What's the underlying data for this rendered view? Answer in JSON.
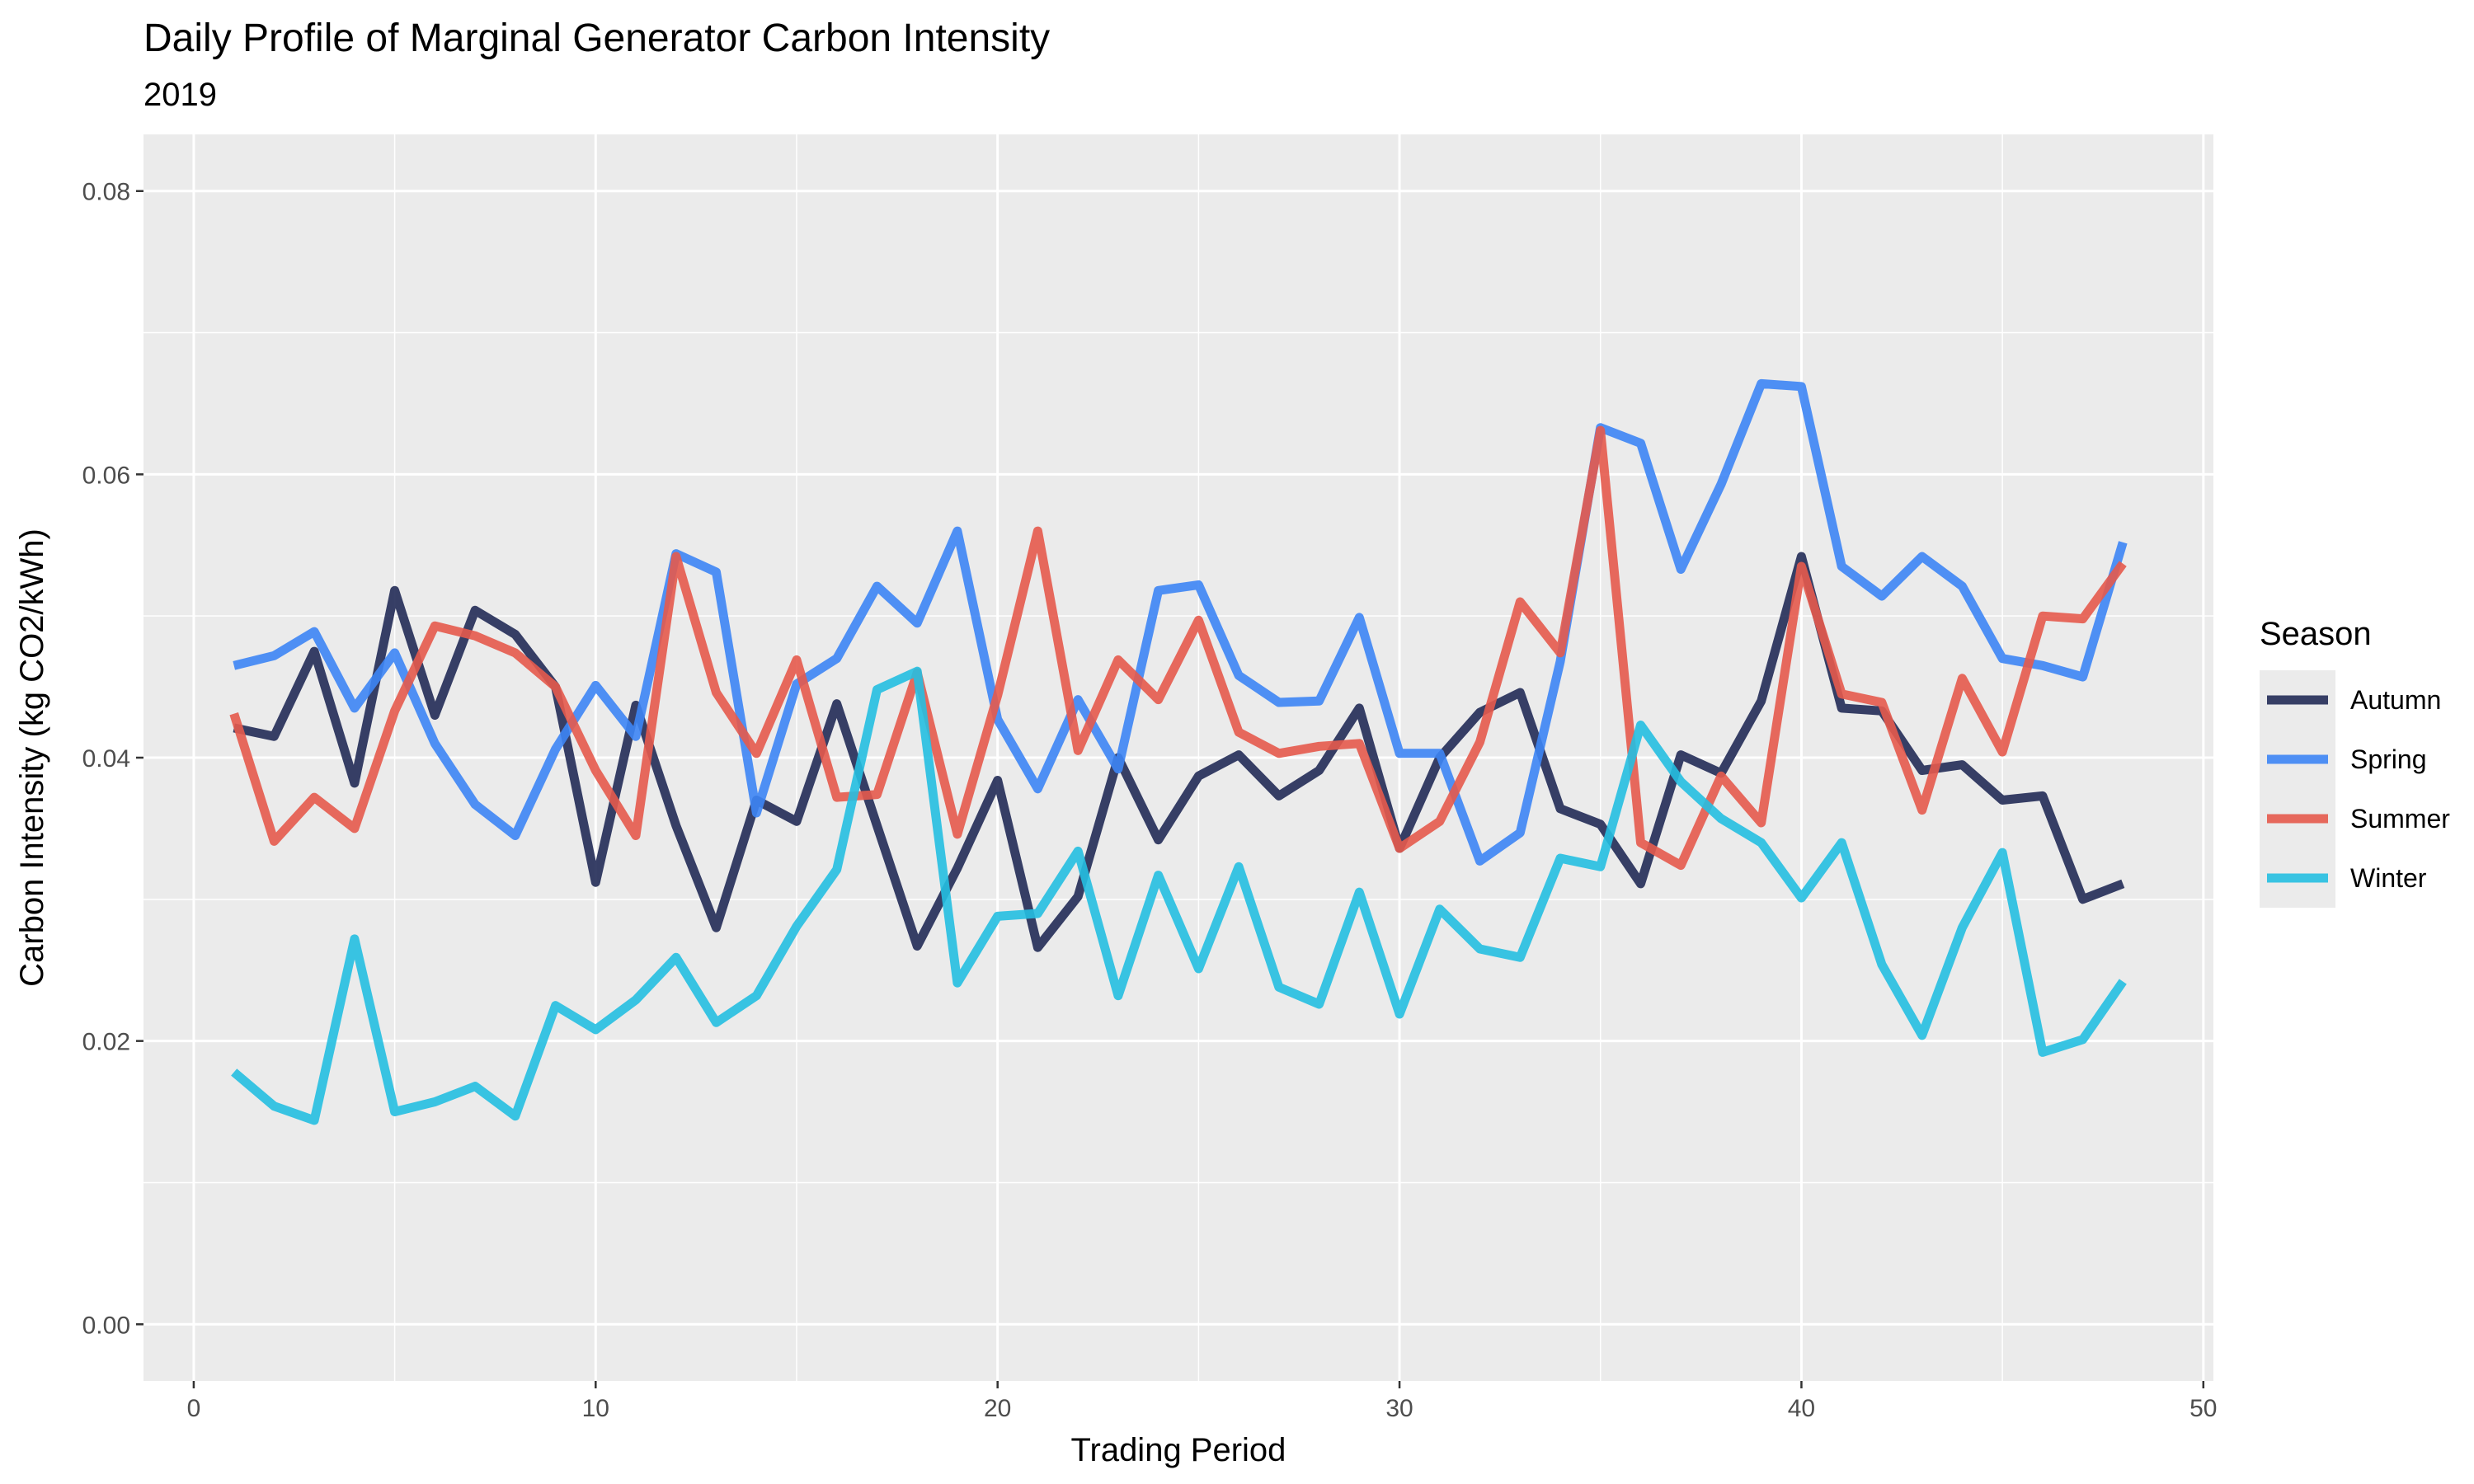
{
  "chart_data": {
    "type": "line",
    "title": "Daily Profile of Marginal Generator Carbon Intensity",
    "subtitle": "2019",
    "xlabel": "Trading Period",
    "ylabel": "Carbon Intensity (kg CO2/kWh)",
    "xlim": [
      -1.25,
      50.25
    ],
    "ylim": [
      -0.004,
      0.084
    ],
    "x_ticks": [
      0,
      10,
      20,
      30,
      40,
      50
    ],
    "y_ticks": [
      0.0,
      0.02,
      0.04,
      0.06,
      0.08
    ],
    "x_tick_labels": [
      "0",
      "10",
      "20",
      "30",
      "40",
      "50"
    ],
    "y_tick_labels": [
      "0.00",
      "0.02",
      "0.04",
      "0.06",
      "0.08"
    ],
    "grid": true,
    "legend": {
      "title": "Season",
      "position": "right"
    },
    "x": [
      1,
      2,
      3,
      4,
      5,
      6,
      7,
      8,
      9,
      10,
      11,
      12,
      13,
      14,
      15,
      16,
      17,
      18,
      19,
      20,
      21,
      22,
      23,
      24,
      25,
      26,
      27,
      28,
      29,
      30,
      31,
      32,
      33,
      34,
      35,
      36,
      37,
      38,
      39,
      40,
      41,
      42,
      43,
      44,
      45,
      46,
      47,
      48
    ],
    "series": [
      {
        "name": "Autumn",
        "color": "#222b56",
        "values": [
          0.0421,
          0.0415,
          0.0475,
          0.0382,
          0.0518,
          0.043,
          0.0504,
          0.0487,
          0.045,
          0.0312,
          0.0437,
          0.0352,
          0.028,
          0.037,
          0.0355,
          0.0438,
          0.0352,
          0.0267,
          0.0322,
          0.0384,
          0.0266,
          0.0302,
          0.04,
          0.0342,
          0.0387,
          0.0402,
          0.0373,
          0.0391,
          0.0435,
          0.0336,
          0.04,
          0.0432,
          0.0446,
          0.0364,
          0.0353,
          0.0311,
          0.0402,
          0.0389,
          0.044,
          0.0542,
          0.0435,
          0.0433,
          0.0391,
          0.0395,
          0.037,
          0.0373,
          0.03,
          0.0311
        ]
      },
      {
        "name": "Spring",
        "color": "#3d85f5",
        "values": [
          0.0465,
          0.0472,
          0.0489,
          0.0435,
          0.0474,
          0.041,
          0.0367,
          0.0345,
          0.0406,
          0.0451,
          0.0415,
          0.0544,
          0.0531,
          0.0361,
          0.0452,
          0.047,
          0.0521,
          0.0495,
          0.056,
          0.0427,
          0.0378,
          0.0441,
          0.0392,
          0.0518,
          0.0522,
          0.0458,
          0.0439,
          0.044,
          0.0499,
          0.0403,
          0.0403,
          0.0327,
          0.0347,
          0.0468,
          0.0633,
          0.0622,
          0.0533,
          0.0593,
          0.0664,
          0.0662,
          0.0535,
          0.0514,
          0.0542,
          0.0521,
          0.047,
          0.0465,
          0.0457,
          0.0552
        ]
      },
      {
        "name": "Summer",
        "color": "#e55a4c",
        "values": [
          0.0431,
          0.0341,
          0.0372,
          0.035,
          0.0433,
          0.0493,
          0.0486,
          0.0474,
          0.045,
          0.0391,
          0.0345,
          0.0542,
          0.0446,
          0.0403,
          0.0469,
          0.0372,
          0.0374,
          0.046,
          0.0346,
          0.0444,
          0.056,
          0.0405,
          0.0469,
          0.0441,
          0.0497,
          0.0418,
          0.0403,
          0.0408,
          0.041,
          0.0336,
          0.0355,
          0.0411,
          0.051,
          0.0474,
          0.0631,
          0.034,
          0.0324,
          0.0387,
          0.0354,
          0.0535,
          0.0445,
          0.0439,
          0.0363,
          0.0456,
          0.0404,
          0.05,
          0.0498,
          0.0537
        ]
      },
      {
        "name": "Winter",
        "color": "#25bfe1",
        "values": [
          0.0178,
          0.0154,
          0.0144,
          0.0272,
          0.015,
          0.0157,
          0.0168,
          0.0147,
          0.0225,
          0.0208,
          0.0229,
          0.0259,
          0.0213,
          0.0232,
          0.0281,
          0.0321,
          0.0448,
          0.0461,
          0.0241,
          0.0288,
          0.029,
          0.0334,
          0.0232,
          0.0317,
          0.0251,
          0.0323,
          0.0238,
          0.0226,
          0.0305,
          0.0219,
          0.0293,
          0.0265,
          0.0259,
          0.0329,
          0.0323,
          0.0423,
          0.0383,
          0.0357,
          0.034,
          0.0301,
          0.034,
          0.0254,
          0.0204,
          0.028,
          0.0333,
          0.0192,
          0.0201,
          0.0242
        ]
      }
    ]
  }
}
